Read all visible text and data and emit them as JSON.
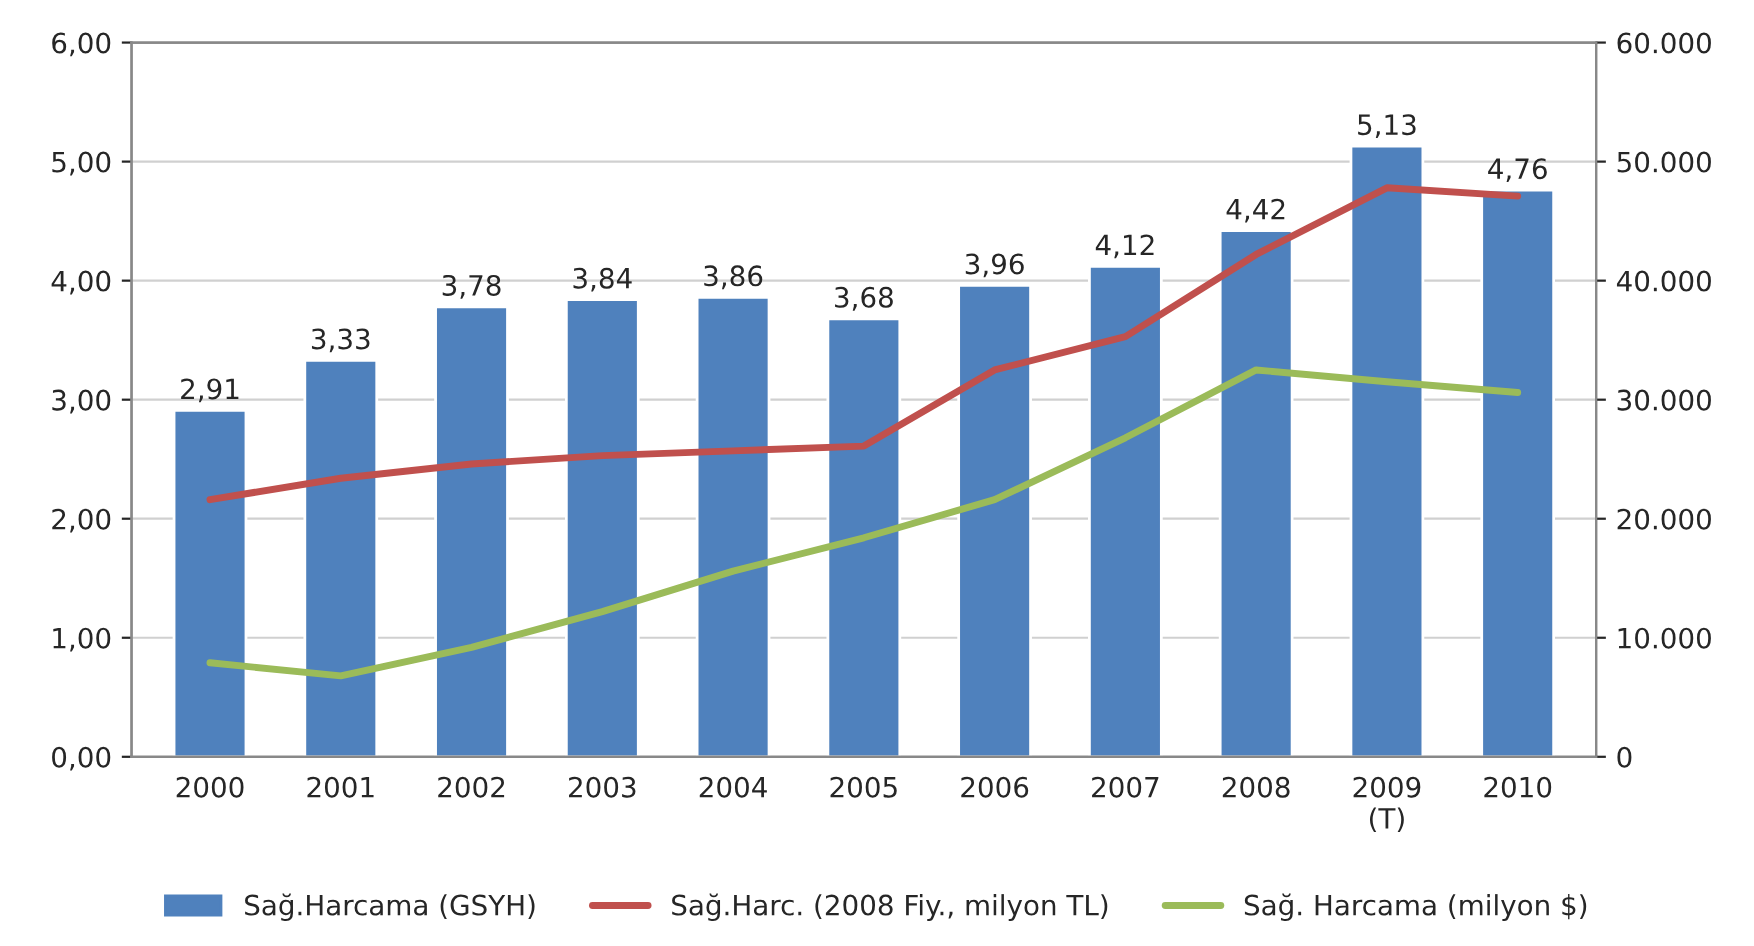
{
  "chart_data": {
    "type": "bar",
    "categories": [
      "2000",
      "2001",
      "2002",
      "2003",
      "2004",
      "2005",
      "2006",
      "2007",
      "2008",
      "2009\n(T)",
      "2010"
    ],
    "series": [
      {
        "name": "Sağ.Harcama (GSYH)",
        "color": "#4f81bd",
        "values": [
          2.91,
          3.33,
          3.78,
          3.84,
          3.86,
          3.68,
          3.96,
          4.12,
          4.42,
          5.13,
          4.76
        ],
        "value_labels": [
          "2,91",
          "3,33",
          "3,78",
          "3,84",
          "3,86",
          "3,68",
          "3,96",
          "4,12",
          "4,42",
          "5,13",
          "4,76"
        ]
      },
      {
        "name": "Sağ.Harc. (2008 Fiy., milyon TL)",
        "type": "line",
        "axis": "y2",
        "color": "#c0504d",
        "values": [
          21600,
          23400,
          24600,
          25300,
          25700,
          26100,
          32500,
          35300,
          42200,
          47800,
          47100
        ]
      },
      {
        "name": "Sağ. Harcama (milyon $)",
        "type": "line",
        "axis": "y2",
        "color": "#9bbb59",
        "values": [
          7900,
          6800,
          9200,
          12200,
          15600,
          18400,
          21600,
          26800,
          32500,
          31500,
          30600
        ]
      }
    ],
    "ylim": [
      0,
      6
    ],
    "yticks": [
      {
        "value": 0,
        "label": "0,00"
      },
      {
        "value": 1,
        "label": "1,00"
      },
      {
        "value": 2,
        "label": "2,00"
      },
      {
        "value": 3,
        "label": "3,00"
      },
      {
        "value": 4,
        "label": "4,00"
      },
      {
        "value": 5,
        "label": "5,00"
      },
      {
        "value": 6,
        "label": "6,00"
      }
    ],
    "y2lim": [
      0,
      60000
    ],
    "y2ticks": [
      0,
      {
        "value": 10000,
        "label": "10.000"
      },
      {
        "value": 20000,
        "label": "20.000"
      },
      {
        "value": 30000,
        "label": "30.000"
      },
      {
        "value": 40000,
        "label": "40.000"
      },
      {
        "value": 50000,
        "label": "50.000"
      },
      {
        "value": 60000,
        "label": "60.000"
      }
    ],
    "grid": "y",
    "legend": "bottom"
  }
}
